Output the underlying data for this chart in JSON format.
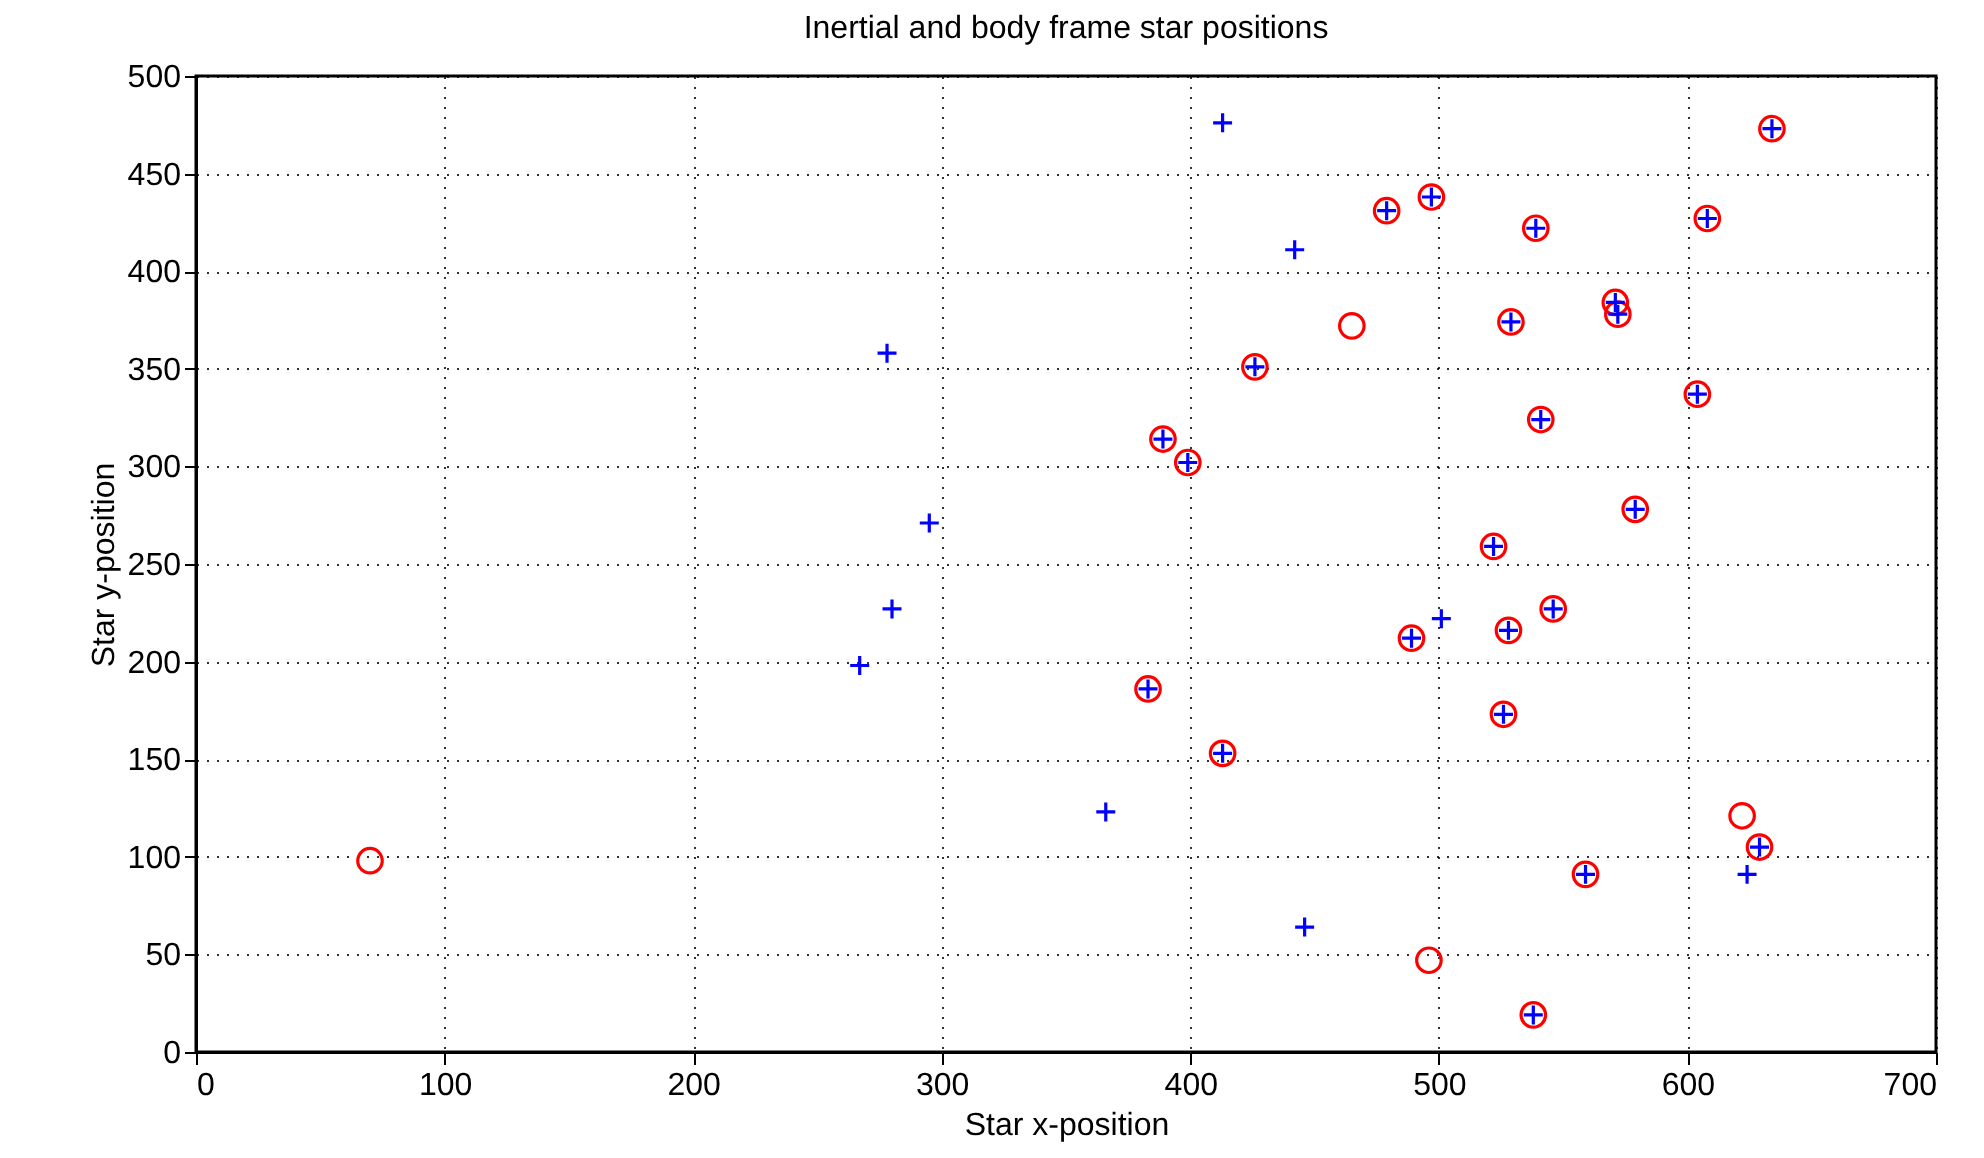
{
  "chart_data": {
    "type": "scatter",
    "title": "Inertial and body frame star positions",
    "xlabel": "Star x-position",
    "ylabel": "Star y-position",
    "xlim": [
      0,
      700
    ],
    "xticks": [
      0,
      100,
      200,
      300,
      400,
      500,
      600,
      700
    ],
    "ylim": [
      0,
      500
    ],
    "yticks": [
      0,
      50,
      100,
      150,
      200,
      250,
      300,
      350,
      400,
      450,
      500
    ],
    "grid": true,
    "series": [
      {
        "color": "#ff0000",
        "marker": "circle",
        "x": [
          634,
          497,
          479,
          539,
          608,
          571,
          572,
          529,
          426,
          541,
          389,
          399,
          604,
          579,
          522,
          546,
          528,
          489,
          383,
          526,
          413,
          559,
          629,
          538,
          70,
          465,
          622,
          496
        ],
        "values": [
          473,
          438,
          431,
          422,
          427,
          384,
          378,
          374,
          351,
          324,
          314,
          302,
          337,
          278,
          259,
          227,
          216,
          212,
          186,
          173,
          153,
          91,
          105,
          19,
          98,
          372,
          121,
          47
        ]
      },
      {
        "color": "#0000ff",
        "marker": "cross",
        "x": [
          634,
          497,
          479,
          539,
          608,
          571,
          572,
          529,
          426,
          541,
          389,
          399,
          604,
          579,
          522,
          546,
          528,
          489,
          383,
          526,
          413,
          559,
          629,
          538,
          413,
          442,
          278,
          295,
          280,
          267,
          501,
          366,
          446,
          624
        ],
        "values": [
          473,
          438,
          431,
          422,
          427,
          384,
          378,
          374,
          351,
          324,
          314,
          302,
          337,
          278,
          259,
          227,
          216,
          212,
          186,
          173,
          153,
          91,
          105,
          19,
          476,
          411,
          358,
          271,
          227,
          198,
          222,
          123,
          64,
          91
        ]
      }
    ]
  }
}
